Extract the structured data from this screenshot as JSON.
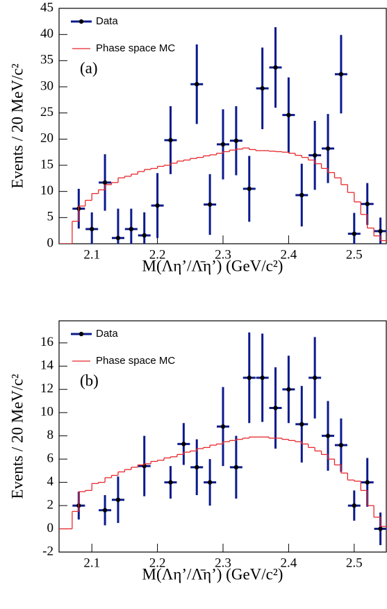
{
  "chart_data": [
    {
      "type": "errorbar",
      "annotation": "(a)",
      "xlabel": "M(Λη’/Λ̄η’) (GeV/c²)",
      "ylabel": "Events / 20 MeV/c²",
      "xlim": [
        2.05,
        2.55
      ],
      "xticks": [
        2.1,
        2.2,
        2.3,
        2.4,
        2.5
      ],
      "ylim": [
        0,
        45
      ],
      "yticks": [
        0,
        5,
        10,
        15,
        20,
        25,
        30,
        35,
        40,
        45
      ],
      "series": [
        {
          "name": "Data",
          "color": "#0a1a8c",
          "x": [
            2.08,
            2.1,
            2.12,
            2.14,
            2.16,
            2.18,
            2.2,
            2.22,
            2.26,
            2.28,
            2.3,
            2.32,
            2.34,
            2.36,
            2.38,
            2.4,
            2.42,
            2.44,
            2.46,
            2.48,
            2.5,
            2.52,
            2.54
          ],
          "values": [
            6.7,
            2.8,
            11.7,
            1.1,
            2.8,
            1.6,
            7.3,
            19.8,
            30.5,
            7.5,
            19.0,
            19.7,
            10.5,
            29.7,
            33.7,
            24.6,
            9.3,
            16.9,
            18.2,
            32.4,
            1.9,
            7.6,
            2.4
          ],
          "errors": [
            3.8,
            3.2,
            5.4,
            5.6,
            3.9,
            4.4,
            6.2,
            6.5,
            7.6,
            5.8,
            6.7,
            6.6,
            6.3,
            7.8,
            7.7,
            7.2,
            6.0,
            6.6,
            6.6,
            7.5,
            4.0,
            4.0,
            2.6
          ]
        },
        {
          "name": "Phase space MC",
          "color": "#e8262a",
          "bins": [
            2.05,
            2.06,
            2.07,
            2.08,
            2.09,
            2.1,
            2.11,
            2.12,
            2.13,
            2.14,
            2.15,
            2.16,
            2.17,
            2.18,
            2.19,
            2.2,
            2.21,
            2.22,
            2.23,
            2.24,
            2.25,
            2.26,
            2.27,
            2.28,
            2.29,
            2.3,
            2.31,
            2.32,
            2.33,
            2.34,
            2.35,
            2.36,
            2.37,
            2.38,
            2.39,
            2.4,
            2.41,
            2.42,
            2.43,
            2.44,
            2.45,
            2.46,
            2.47,
            2.48,
            2.49,
            2.5,
            2.51,
            2.52,
            2.53,
            2.54,
            2.55
          ],
          "values": [
            0,
            0,
            4.3,
            7.2,
            8.3,
            9.6,
            10.3,
            11.3,
            11.7,
            12.6,
            12.9,
            13.3,
            13.8,
            14.2,
            14.4,
            14.8,
            15.0,
            15.4,
            15.8,
            16.0,
            16.3,
            16.5,
            16.8,
            17.0,
            17.3,
            17.6,
            17.9,
            18.1,
            18.3,
            18.0,
            17.8,
            17.8,
            17.7,
            17.6,
            17.5,
            17.3,
            16.9,
            16.5,
            16.0,
            15.3,
            14.4,
            13.6,
            12.6,
            11.3,
            9.8,
            8.0,
            5.6,
            3.0,
            1.5,
            0.6
          ]
        }
      ]
    },
    {
      "type": "errorbar",
      "annotation": "(b)",
      "xlabel": "M(Λη’/Λ̄η’) (GeV/c²)",
      "ylabel": "Events / 20 MeV/c²",
      "xlim": [
        2.05,
        2.55
      ],
      "xticks": [
        2.1,
        2.2,
        2.3,
        2.4,
        2.5
      ],
      "ylim": [
        -2,
        17.9
      ],
      "yticks": [
        -2,
        0,
        2,
        4,
        6,
        8,
        10,
        12,
        14,
        16
      ],
      "series": [
        {
          "name": "Data",
          "color": "#0a1a8c",
          "x": [
            2.08,
            2.12,
            2.14,
            2.18,
            2.22,
            2.24,
            2.26,
            2.28,
            2.3,
            2.32,
            2.34,
            2.36,
            2.38,
            2.4,
            2.42,
            2.44,
            2.46,
            2.48,
            2.5,
            2.52,
            2.54
          ],
          "values": [
            2.0,
            1.6,
            2.5,
            5.4,
            4.0,
            7.3,
            5.3,
            4.0,
            8.8,
            5.3,
            13.0,
            13.0,
            10.4,
            12.0,
            9.0,
            13.0,
            8.0,
            7.2,
            2.0,
            4.0,
            0.0
          ],
          "errors": [
            1.2,
            1.3,
            2.0,
            2.6,
            1.4,
            1.8,
            2.4,
            2.0,
            3.4,
            2.7,
            3.9,
            3.8,
            3.5,
            2.9,
            3.3,
            3.5,
            3.0,
            2.3,
            1.3,
            2.1,
            1.4
          ]
        },
        {
          "name": "Phase space MC",
          "color": "#e8262a",
          "bins": [
            2.05,
            2.06,
            2.07,
            2.08,
            2.09,
            2.1,
            2.11,
            2.12,
            2.13,
            2.14,
            2.15,
            2.16,
            2.17,
            2.18,
            2.19,
            2.2,
            2.21,
            2.22,
            2.23,
            2.24,
            2.25,
            2.26,
            2.27,
            2.28,
            2.29,
            2.3,
            2.31,
            2.32,
            2.33,
            2.34,
            2.35,
            2.36,
            2.37,
            2.38,
            2.39,
            2.4,
            2.41,
            2.42,
            2.43,
            2.44,
            2.45,
            2.46,
            2.47,
            2.48,
            2.49,
            2.5,
            2.51,
            2.52,
            2.53,
            2.54,
            2.55
          ],
          "values": [
            0,
            0,
            1.5,
            3.2,
            3.3,
            3.9,
            4.0,
            4.4,
            4.6,
            4.9,
            5.1,
            5.3,
            5.5,
            5.6,
            5.8,
            5.9,
            6.1,
            6.2,
            6.4,
            6.6,
            6.7,
            6.9,
            7.0,
            7.2,
            7.3,
            7.5,
            7.6,
            7.7,
            7.8,
            7.9,
            7.9,
            7.9,
            7.8,
            7.8,
            7.7,
            7.6,
            7.5,
            7.3,
            7.0,
            6.7,
            6.4,
            6.0,
            5.5,
            4.8,
            4.2,
            4.1,
            3.3,
            2.0,
            1.0,
            0.2
          ]
        }
      ]
    }
  ]
}
